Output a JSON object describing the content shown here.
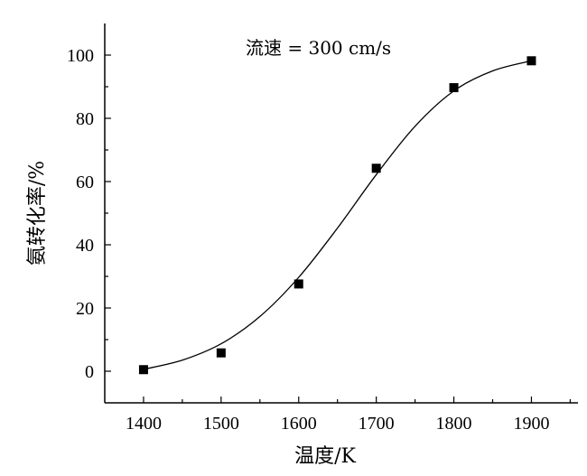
{
  "chart_data": {
    "type": "scatter",
    "title": "",
    "annotation": "流速 = 300 cm/s",
    "xlabel": "温度/K",
    "ylabel": "氨转化率/%",
    "xlim": [
      1350,
      1960
    ],
    "ylim": [
      -10,
      110
    ],
    "xticks": [
      1400,
      1500,
      1600,
      1700,
      1800,
      1900
    ],
    "yticks": [
      0,
      20,
      40,
      60,
      80,
      100
    ],
    "grid": false,
    "legend": "none",
    "marker_color": "#000000",
    "line_color": "#000000",
    "series": [
      {
        "type": "scatter",
        "marker": "square",
        "x": [
          1400,
          1500,
          1600,
          1700,
          1800,
          1900
        ],
        "y": [
          0.5,
          5.8,
          27.6,
          64.2,
          89.7,
          98.2
        ]
      },
      {
        "type": "line",
        "smooth": true,
        "x": [
          1400,
          1450,
          1500,
          1550,
          1600,
          1650,
          1700,
          1750,
          1800,
          1850,
          1900
        ],
        "y": [
          0.6,
          3.5,
          8.7,
          17.3,
          29.7,
          45.3,
          62.2,
          77.5,
          88.7,
          95.0,
          98.2
        ]
      }
    ]
  }
}
